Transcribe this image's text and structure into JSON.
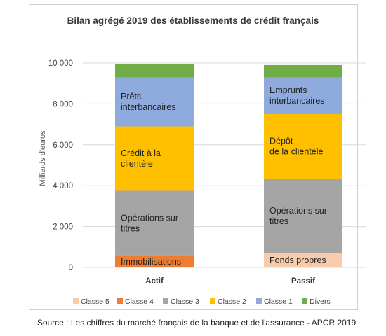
{
  "source": "Source : Les chiffres du marché français de la banque et de l'assurance - APCR 2019",
  "chart_data": {
    "type": "bar",
    "stacked": true,
    "title": "Bilan agrégé 2019 des établissements de crédit français",
    "ylabel": "Milliards d'euros",
    "xlabel": "",
    "ylim": [
      0,
      10000
    ],
    "yticks": [
      0,
      2000,
      4000,
      6000,
      8000,
      10000
    ],
    "ytick_labels": [
      "0",
      "2 000",
      "4 000",
      "6 000",
      "8 000",
      "10 000"
    ],
    "categories": [
      "Actif",
      "Passif"
    ],
    "grid": true,
    "legend_position": "bottom",
    "series": [
      {
        "name": "Classe 5",
        "color": "#f8cbad",
        "values": [
          0,
          700
        ]
      },
      {
        "name": "Classe 4",
        "color": "#ed7d31",
        "values": [
          550,
          0
        ]
      },
      {
        "name": "Classe 3",
        "color": "#a5a5a5",
        "values": [
          3200,
          3650
        ]
      },
      {
        "name": "Classe 2",
        "color": "#ffc000",
        "values": [
          3150,
          3150
        ]
      },
      {
        "name": "Classe 1",
        "color": "#8faadc",
        "values": [
          2400,
          1800
        ]
      },
      {
        "name": "Divers",
        "color": "#70ad47",
        "values": [
          650,
          600
        ]
      }
    ],
    "segment_labels": [
      {
        "category": 0,
        "series": 1,
        "lines": [
          "Immobilisations"
        ]
      },
      {
        "category": 0,
        "series": 2,
        "lines": [
          "Opérations sur",
          "titres"
        ]
      },
      {
        "category": 0,
        "series": 3,
        "lines": [
          "Crédit à la",
          "clientèle"
        ]
      },
      {
        "category": 0,
        "series": 4,
        "lines": [
          "Prêts",
          "interbancaires"
        ]
      },
      {
        "category": 1,
        "series": 0,
        "lines": [
          "Fonds propres"
        ]
      },
      {
        "category": 1,
        "series": 2,
        "lines": [
          "Opérations sur",
          "titres"
        ]
      },
      {
        "category": 1,
        "series": 3,
        "lines": [
          "Dépôt",
          "de la clientèle"
        ]
      },
      {
        "category": 1,
        "series": 4,
        "lines": [
          "Emprunts",
          "interbancaires"
        ]
      }
    ]
  }
}
